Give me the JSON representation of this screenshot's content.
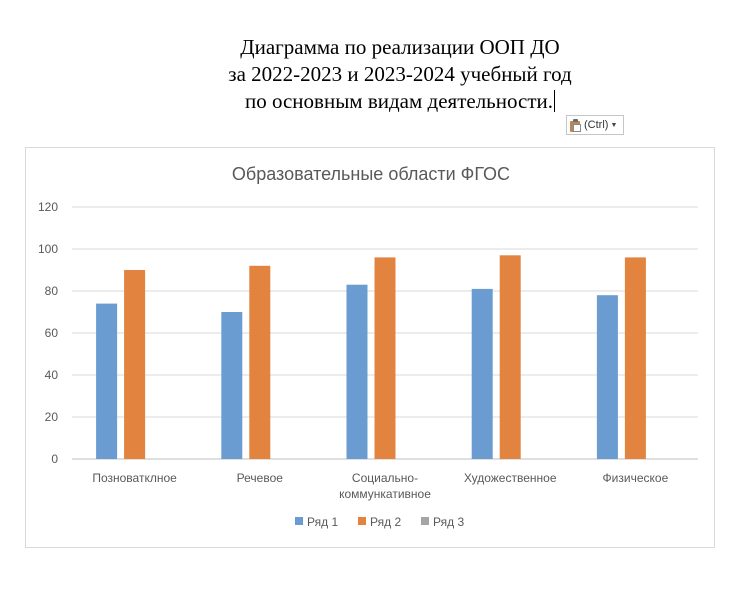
{
  "document": {
    "title_lines": [
      "Диаграмма по реализации ООП ДО",
      "за 2022-2023 и 2023-2024 учебный год",
      "по основным видам деятельности."
    ],
    "paste_options_label": "(Ctrl)"
  },
  "chart_data": {
    "type": "bar",
    "title": "Образовательные области ФГОС",
    "categories": [
      [
        "Позноватклное"
      ],
      [
        "Речевое"
      ],
      [
        "Социально-",
        "коммункативное"
      ],
      [
        "Художественное"
      ],
      [
        "Физическое"
      ]
    ],
    "series": [
      {
        "name": "Ряд 1",
        "color": "#6a9bd1",
        "values": [
          74,
          70,
          83,
          81,
          78
        ]
      },
      {
        "name": "Ряд 2",
        "color": "#e2843f",
        "values": [
          90,
          92,
          96,
          97,
          96
        ]
      },
      {
        "name": "Ряд 3",
        "color": "#a5a5a5",
        "values": [
          0,
          0,
          0,
          0,
          0
        ]
      }
    ],
    "ylim": [
      0,
      120
    ],
    "yticks": [
      0,
      20,
      40,
      60,
      80,
      100,
      120
    ],
    "grid": true,
    "legend_position": "bottom"
  }
}
